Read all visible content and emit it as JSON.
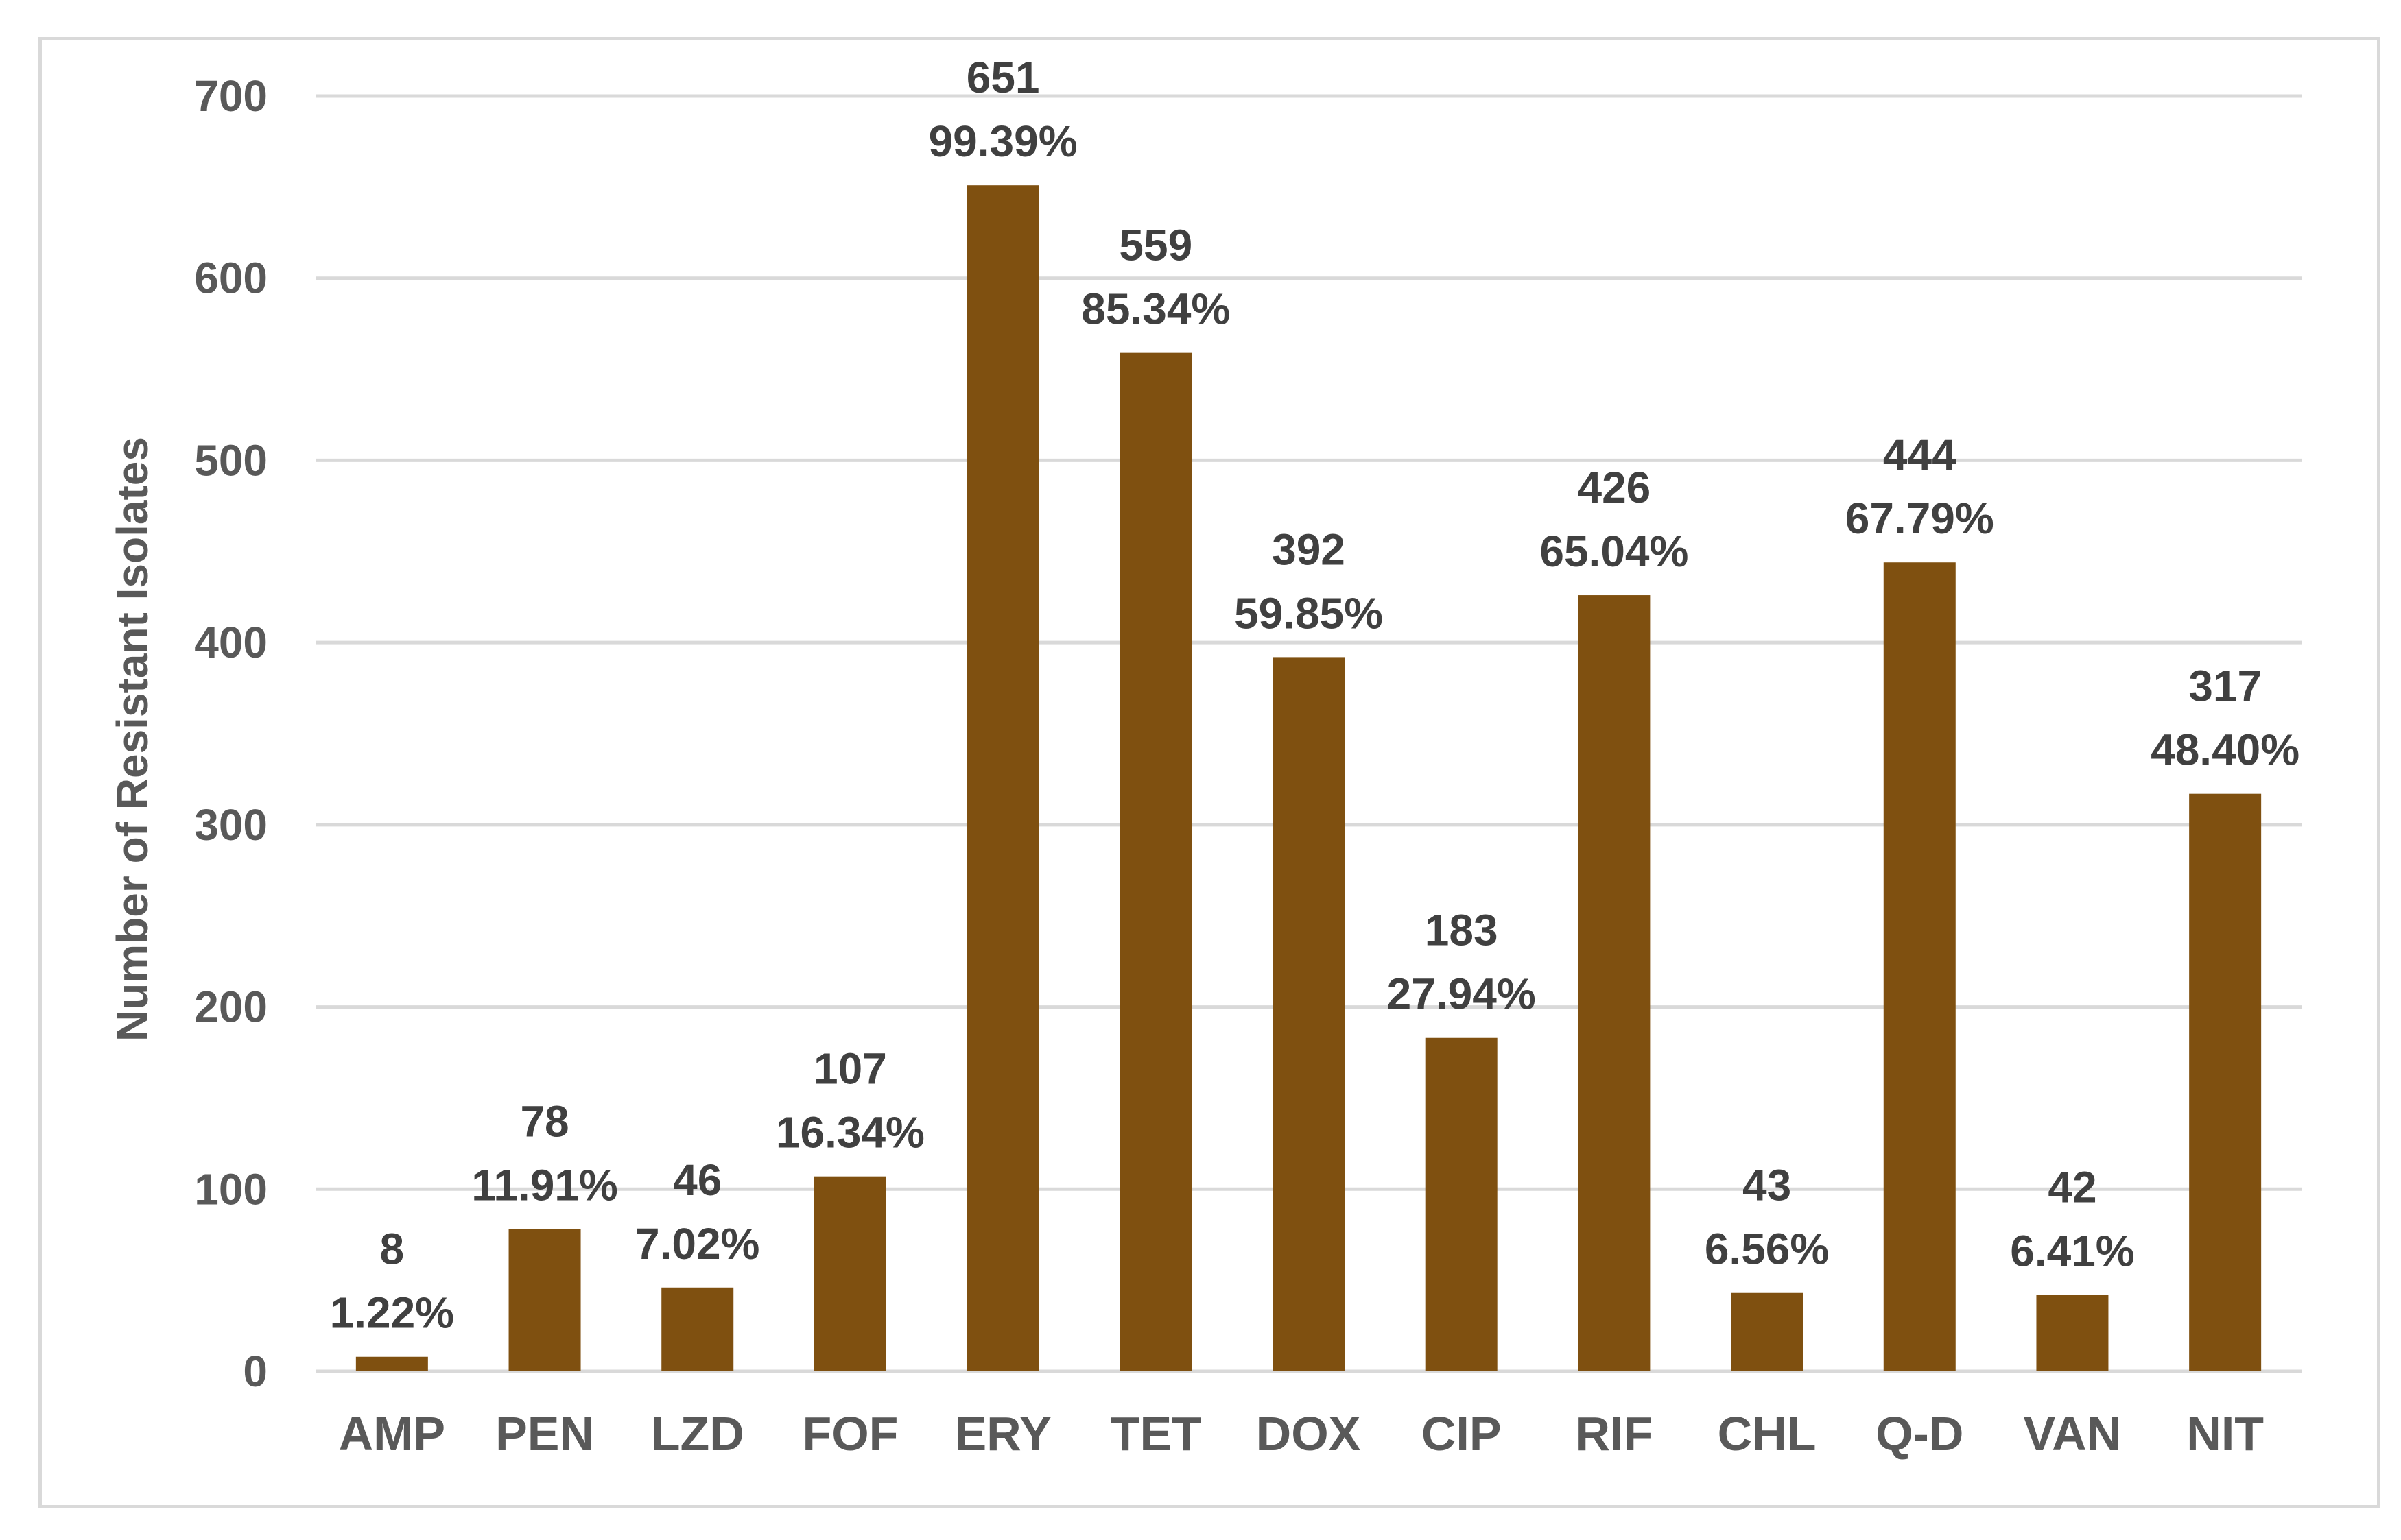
{
  "chart_data": {
    "type": "bar",
    "title": "",
    "xlabel": "",
    "ylabel": "Number of Resistant Isolates",
    "ylim": [
      0,
      700
    ],
    "yticks": [
      0,
      100,
      200,
      300,
      400,
      500,
      600,
      700
    ],
    "grid": true,
    "categories": [
      "AMP",
      "PEN",
      "LZD",
      "FOF",
      "ERY",
      "TET",
      "DOX",
      "CIP",
      "RIF",
      "CHL",
      "Q-D",
      "VAN",
      "NIT"
    ],
    "values": [
      8,
      78,
      46,
      107,
      651,
      559,
      392,
      183,
      426,
      43,
      444,
      42,
      317
    ],
    "value_labels": [
      "8",
      "78",
      "46",
      "107",
      "651",
      "559",
      "392",
      "183",
      "426",
      "43",
      "444",
      "42",
      "317"
    ],
    "percent_labels": [
      "1.22%",
      "11.91%",
      "7.02%",
      "16.34%",
      "99.39%",
      "85.34%",
      "59.85%",
      "27.94%",
      "65.04%",
      "6.56%",
      "67.79%",
      "6.41%",
      "48.40%"
    ],
    "bar_color": "#7f5010",
    "grid_color": "#d9d9d9"
  }
}
